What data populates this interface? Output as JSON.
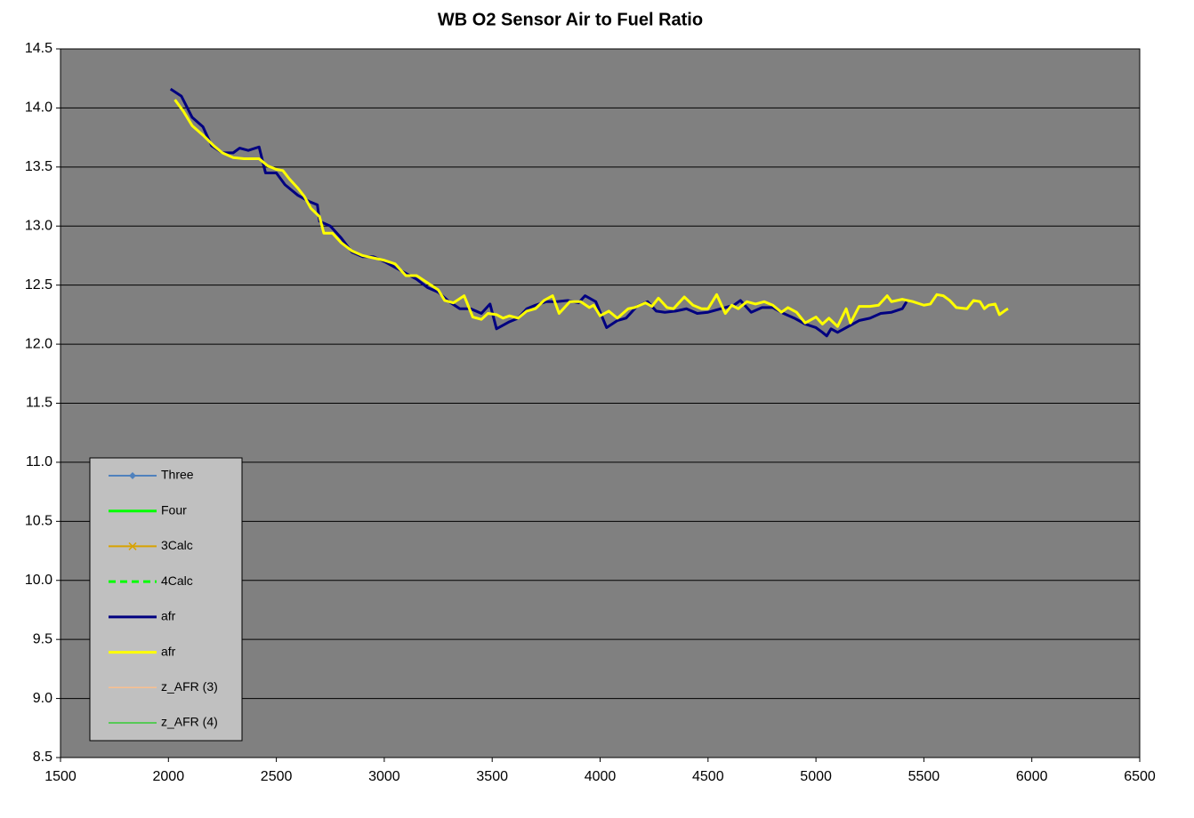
{
  "chart_data": {
    "type": "line",
    "title": "WB O2 Sensor Air to Fuel Ratio",
    "xlim": [
      1500,
      6500
    ],
    "xticks": [
      1500,
      2000,
      2500,
      3000,
      3500,
      4000,
      4500,
      5000,
      5500,
      6000,
      6500
    ],
    "ylim": [
      8.5,
      14.5
    ],
    "yticks": [
      {
        "value": 8.5,
        "label": "8.5"
      },
      {
        "value": 9,
        "label": "9.0"
      },
      {
        "value": 9.5,
        "label": "9.5"
      },
      {
        "value": 10,
        "label": "10.0"
      },
      {
        "value": 10.5,
        "label": "10.5"
      },
      {
        "value": 11,
        "label": "11.0"
      },
      {
        "value": 11.5,
        "label": "11.5"
      },
      {
        "value": 12,
        "label": "12.0"
      },
      {
        "value": 12.5,
        "label": "12.5"
      },
      {
        "value": 13,
        "label": "13.0"
      },
      {
        "value": 13.5,
        "label": "13.5"
      },
      {
        "value": 14,
        "label": "14.0"
      },
      {
        "value": 14.5,
        "label": "14.5"
      }
    ],
    "grid": true,
    "plot_background": "#808080",
    "legend": "lower-left",
    "series": [
      {
        "name": "Three",
        "color": "#4f81bd",
        "width": 2,
        "dash": "solid",
        "marker": "diamond",
        "x": [],
        "values": []
      },
      {
        "name": "Four",
        "color": "#00ff00",
        "width": 3,
        "dash": "solid",
        "marker": "none",
        "x": [],
        "values": []
      },
      {
        "name": "3Calc",
        "color": "#d8a200",
        "width": 2,
        "dash": "solid",
        "marker": "cross",
        "x": [],
        "values": []
      },
      {
        "name": "4Calc",
        "color": "#00ff00",
        "width": 3,
        "dash": "dashed",
        "marker": "none",
        "x": [],
        "values": []
      },
      {
        "name": "afr",
        "color": "#000080",
        "width": 3,
        "dash": "solid",
        "marker": "none",
        "x": [
          2010,
          2060,
          2110,
          2160,
          2175,
          2200,
          2250,
          2300,
          2330,
          2370,
          2420,
          2450,
          2500,
          2540,
          2600,
          2650,
          2690,
          2700,
          2750,
          2800,
          2850,
          2900,
          2950,
          3000,
          3050,
          3100,
          3150,
          3200,
          3250,
          3300,
          3350,
          3400,
          3450,
          3490,
          3520,
          3580,
          3620,
          3660,
          3700,
          3750,
          3800,
          3850,
          3900,
          3930,
          3980,
          4030,
          4080,
          4120,
          4170,
          4220,
          4260,
          4300,
          4350,
          4400,
          4450,
          4500,
          4560,
          4620,
          4650,
          4700,
          4750,
          4800,
          4850,
          4900,
          4950,
          5000,
          5030,
          5050,
          5070,
          5100,
          5150,
          5200,
          5250,
          5300,
          5350,
          5400,
          5420
        ],
        "values": [
          14.16,
          14.1,
          13.92,
          13.84,
          13.78,
          13.68,
          13.62,
          13.62,
          13.66,
          13.64,
          13.67,
          13.45,
          13.45,
          13.35,
          13.26,
          13.21,
          13.18,
          13.04,
          13.0,
          12.9,
          12.78,
          12.74,
          12.74,
          12.7,
          12.65,
          12.6,
          12.55,
          12.48,
          12.44,
          12.36,
          12.3,
          12.3,
          12.26,
          12.34,
          12.13,
          12.19,
          12.22,
          12.3,
          12.33,
          12.36,
          12.36,
          12.37,
          12.35,
          12.41,
          12.36,
          12.14,
          12.2,
          12.22,
          12.32,
          12.36,
          12.28,
          12.27,
          12.28,
          12.3,
          12.26,
          12.27,
          12.3,
          12.33,
          12.37,
          12.27,
          12.31,
          12.31,
          12.26,
          12.22,
          12.17,
          12.14,
          12.1,
          12.07,
          12.13,
          12.1,
          12.15,
          12.2,
          12.22,
          12.26,
          12.27,
          12.3,
          12.36
        ]
      },
      {
        "name": "afr",
        "color": "#ffff00",
        "width": 3,
        "dash": "solid",
        "marker": "none",
        "x": [
          2030,
          2070,
          2110,
          2160,
          2210,
          2250,
          2300,
          2350,
          2420,
          2460,
          2500,
          2530,
          2560,
          2600,
          2630,
          2660,
          2700,
          2720,
          2760,
          2800,
          2850,
          2900,
          2950,
          3000,
          3050,
          3100,
          3150,
          3200,
          3250,
          3280,
          3320,
          3370,
          3410,
          3450,
          3480,
          3520,
          3550,
          3580,
          3620,
          3660,
          3700,
          3740,
          3780,
          3810,
          3860,
          3910,
          3950,
          3970,
          4000,
          4040,
          4080,
          4130,
          4160,
          4210,
          4240,
          4270,
          4310,
          4340,
          4390,
          4430,
          4470,
          4500,
          4540,
          4580,
          4610,
          4640,
          4680,
          4720,
          4760,
          4800,
          4840,
          4870,
          4910,
          4950,
          5000,
          5030,
          5060,
          5100,
          5140,
          5160,
          5200,
          5250,
          5290,
          5330,
          5350,
          5400,
          5450,
          5500,
          5530,
          5560,
          5590,
          5620,
          5650,
          5700,
          5730,
          5760,
          5780,
          5800,
          5830,
          5850,
          5880,
          5890
        ],
        "values": [
          14.07,
          13.97,
          13.85,
          13.77,
          13.68,
          13.62,
          13.58,
          13.57,
          13.57,
          13.51,
          13.48,
          13.47,
          13.4,
          13.32,
          13.25,
          13.15,
          13.08,
          12.94,
          12.94,
          12.86,
          12.79,
          12.75,
          12.73,
          12.71,
          12.68,
          12.58,
          12.58,
          12.52,
          12.46,
          12.37,
          12.35,
          12.41,
          12.23,
          12.21,
          12.26,
          12.25,
          12.22,
          12.24,
          12.22,
          12.28,
          12.3,
          12.37,
          12.41,
          12.26,
          12.36,
          12.36,
          12.31,
          12.33,
          12.24,
          12.28,
          12.22,
          12.3,
          12.31,
          12.35,
          12.32,
          12.39,
          12.31,
          12.3,
          12.4,
          12.33,
          12.3,
          12.3,
          12.42,
          12.26,
          12.33,
          12.3,
          12.36,
          12.34,
          12.36,
          12.33,
          12.27,
          12.31,
          12.27,
          12.18,
          12.23,
          12.17,
          12.22,
          12.15,
          12.3,
          12.18,
          12.32,
          12.32,
          12.33,
          12.41,
          12.36,
          12.38,
          12.36,
          12.33,
          12.34,
          12.42,
          12.41,
          12.37,
          12.31,
          12.3,
          12.37,
          12.36,
          12.3,
          12.33,
          12.34,
          12.25,
          12.29,
          12.3
        ]
      },
      {
        "name": "z_AFR (3)",
        "color": "#fabf8f",
        "width": 1.5,
        "dash": "solid",
        "marker": "none",
        "x": [],
        "values": []
      },
      {
        "name": "z_AFR (4)",
        "color": "#33cc33",
        "width": 1.5,
        "dash": "solid",
        "marker": "none",
        "x": [],
        "values": []
      }
    ]
  }
}
